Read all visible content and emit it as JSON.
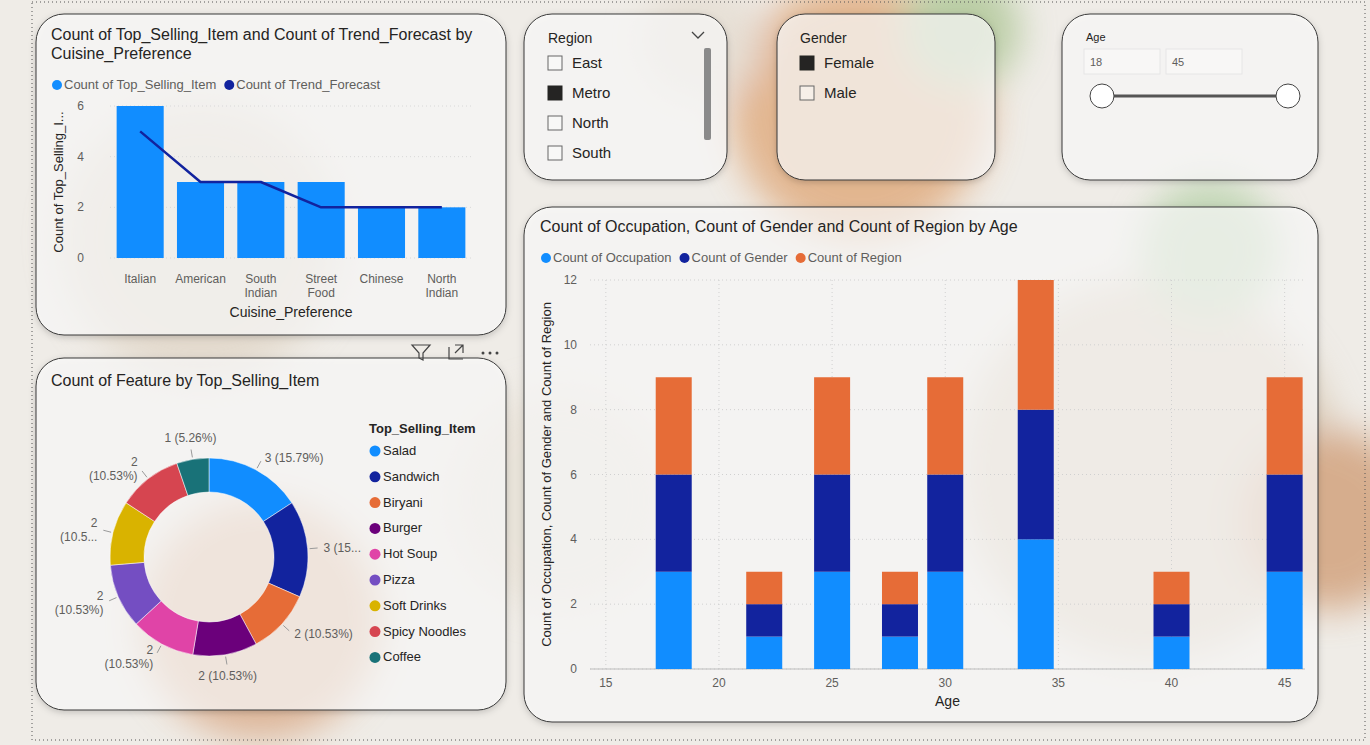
{
  "chart_data": [
    {
      "type": "bar",
      "title": "Count of Top_Selling_Item and Count of Trend_Forecast by Cuisine_Preference",
      "x_label": "Cuisine_Preference",
      "y_label": "Count of Top_Selling_I...",
      "categories": [
        "Italian",
        "American",
        "South Indian",
        "Street Food",
        "Chinese",
        "North Indian"
      ],
      "series": [
        {
          "name": "Count of Top_Selling_Item",
          "type": "bar",
          "color": "#118DFF",
          "values": [
            6,
            3,
            3,
            3,
            2,
            2
          ]
        },
        {
          "name": "Count of Trend_Forecast",
          "type": "line",
          "color": "#12239E",
          "values": [
            5,
            3,
            3,
            2,
            2,
            2
          ]
        }
      ],
      "ylim": [
        0,
        6
      ],
      "yticks": [
        0,
        2,
        4,
        6
      ],
      "grid": true,
      "legend": "top-left"
    },
    {
      "type": "pie",
      "title": "Count of Feature by Top_Selling_Item",
      "legend_title": "Top_Selling_Item",
      "categories": [
        "Salad",
        "Sandwich",
        "Biryani",
        "Burger",
        "Hot Soup",
        "Pizza",
        "Soft Drinks",
        "Spicy Noodles",
        "Coffee"
      ],
      "values": [
        3,
        3,
        2,
        2,
        2,
        2,
        2,
        2,
        1
      ],
      "value_labels": [
        "3 (15.79%)",
        "3 (15...",
        "2 (10.53%)",
        "2 (10.53%)",
        "2 (10.53%)",
        "2 (10.53%)",
        "2 (10.5...",
        "2 (10.53%)",
        "1 (5.26%)"
      ],
      "colors": [
        "#118DFF",
        "#12239E",
        "#E66C37",
        "#6B007B",
        "#E044A7",
        "#744EC2",
        "#D9B300",
        "#D64550",
        "#197278"
      ],
      "data_labels": true,
      "legend": "right"
    },
    {
      "type": "bar",
      "title": "Count of Occupation, Count of Gender and Count of Region by Age",
      "x_label": "Age",
      "y_label": "Count of Occupation, Count of Gender and Count of Region",
      "x": [
        18,
        22,
        25,
        28,
        30,
        34,
        40,
        45
      ],
      "series": [
        {
          "name": "Count of Occupation",
          "color": "#118DFF",
          "values": [
            3,
            1,
            3,
            1,
            3,
            4,
            1,
            3
          ]
        },
        {
          "name": "Count of Gender",
          "color": "#12239E",
          "values": [
            3,
            1,
            3,
            1,
            3,
            4,
            1,
            3
          ]
        },
        {
          "name": "Count of Region",
          "color": "#E66C37",
          "values": [
            3,
            1,
            3,
            1,
            3,
            4,
            1,
            3
          ]
        }
      ],
      "xlim": [
        14.3,
        45.9
      ],
      "xticks": [
        15,
        20,
        25,
        30,
        35,
        40,
        45
      ],
      "ylim": [
        0,
        12
      ],
      "yticks": [
        0,
        2,
        4,
        6,
        8,
        10,
        12
      ],
      "stacked": true,
      "grid": true,
      "legend": "top-left"
    }
  ],
  "slicers": [
    {
      "title": "Region",
      "items": [
        {
          "label": "East",
          "selected": false
        },
        {
          "label": "Metro",
          "selected": true
        },
        {
          "label": "North",
          "selected": false
        },
        {
          "label": "South",
          "selected": false
        }
      ]
    },
    {
      "title": "Gender",
      "items": [
        {
          "label": "Female",
          "selected": true
        },
        {
          "label": "Male",
          "selected": false
        }
      ]
    },
    {
      "title": "Age",
      "range": [
        18,
        45
      ]
    }
  ]
}
